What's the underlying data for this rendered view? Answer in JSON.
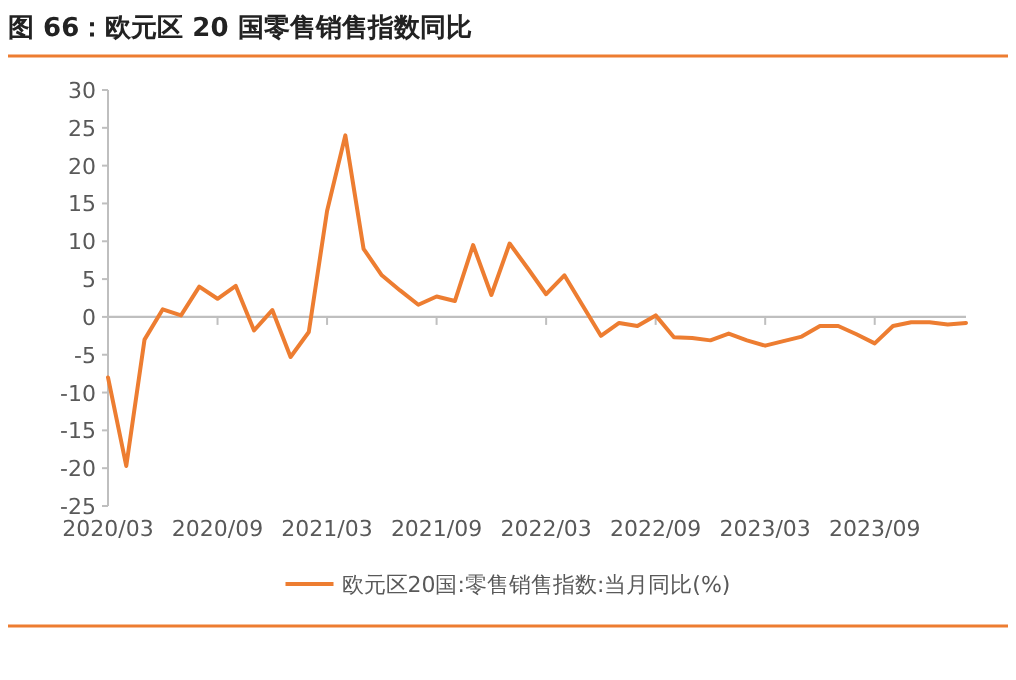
{
  "chart_data": {
    "type": "line",
    "title": "图 66：欧元区 20 国零售销售指数同比",
    "x": [
      "2020-03",
      "2020-04",
      "2020-05",
      "2020-06",
      "2020-07",
      "2020-08",
      "2020-09",
      "2020-10",
      "2020-11",
      "2020-12",
      "2021-01",
      "2021-02",
      "2021-03",
      "2021-04",
      "2021-05",
      "2021-06",
      "2021-07",
      "2021-08",
      "2021-09",
      "2021-10",
      "2021-11",
      "2021-12",
      "2022-01",
      "2022-02",
      "2022-03",
      "2022-04",
      "2022-05",
      "2022-06",
      "2022-07",
      "2022-08",
      "2022-09",
      "2022-10",
      "2022-11",
      "2022-12",
      "2023-01",
      "2023-02",
      "2023-03",
      "2023-04",
      "2023-05",
      "2023-06",
      "2023-07",
      "2023-08",
      "2023-09",
      "2023-10",
      "2023-11",
      "2023-12",
      "2024-01",
      "2024-02"
    ],
    "series": [
      {
        "name": "欧元区20国:零售销售指数:当月同比(%)",
        "color": "#ed7d31",
        "values": [
          -8,
          -19.7,
          -3,
          1,
          0.2,
          4,
          2.4,
          4.1,
          -1.8,
          0.9,
          -5.3,
          -2,
          14,
          24,
          9,
          5.5,
          3.5,
          1.6,
          2.7,
          2.1,
          9.5,
          2.9,
          9.7,
          6.4,
          3,
          5.5,
          1.5,
          -2.5,
          -0.8,
          -1.2,
          0.2,
          -2.7,
          -2.8,
          -3.1,
          -2.2,
          -3.1,
          -3.8,
          -3.2,
          -2.6,
          -1.2,
          -1.2,
          -2.3,
          -3.5,
          -1.2,
          -0.7,
          -0.7,
          -1,
          -0.8
        ]
      }
    ],
    "xlim": [
      "2020-03",
      "2024-02"
    ],
    "xticks": [
      {
        "value": "2020-03",
        "label": "2020/03"
      },
      {
        "value": "2020-09",
        "label": "2020/09"
      },
      {
        "value": "2021-03",
        "label": "2021/03"
      },
      {
        "value": "2021-09",
        "label": "2021/09"
      },
      {
        "value": "2022-03",
        "label": "2022/03"
      },
      {
        "value": "2022-09",
        "label": "2022/09"
      },
      {
        "value": "2023-03",
        "label": "2023/03"
      },
      {
        "value": "2023-09",
        "label": "2023/09"
      }
    ],
    "ylim": [
      -25,
      30
    ],
    "yticks": [
      -25,
      -20,
      -15,
      -10,
      -5,
      0,
      5,
      10,
      15,
      20,
      25,
      30
    ],
    "legend": "bottom"
  }
}
